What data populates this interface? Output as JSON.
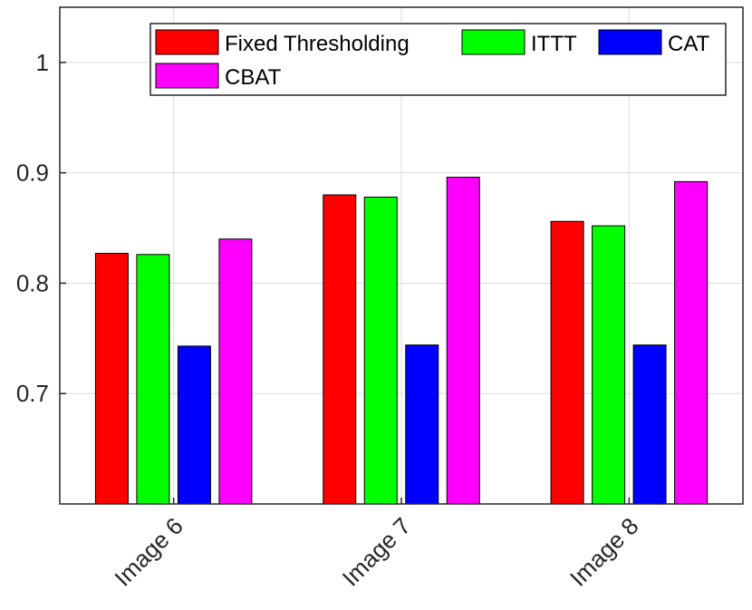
{
  "chart_data": {
    "type": "bar",
    "categories": [
      "Image 6",
      "Image 7",
      "Image 8"
    ],
    "series": [
      {
        "name": "Fixed Thresholding",
        "color": "#ff0000",
        "values": [
          0.827,
          0.88,
          0.856
        ]
      },
      {
        "name": "ITTT",
        "color": "#00ff00",
        "values": [
          0.826,
          0.878,
          0.852
        ]
      },
      {
        "name": "CAT",
        "color": "#0000ff",
        "values": [
          0.743,
          0.744,
          0.744
        ]
      },
      {
        "name": "CBAT",
        "color": "#ff00ff",
        "values": [
          0.84,
          0.896,
          0.892
        ]
      }
    ],
    "ylim": [
      0.6,
      1.05
    ],
    "yticks": [
      0.7,
      0.8,
      0.9,
      1
    ],
    "ytick_labels": [
      "0.7",
      "0.8",
      "0.9",
      "1"
    ],
    "grid": true,
    "legend_position": "top-right",
    "xtick_rotation": -45
  }
}
